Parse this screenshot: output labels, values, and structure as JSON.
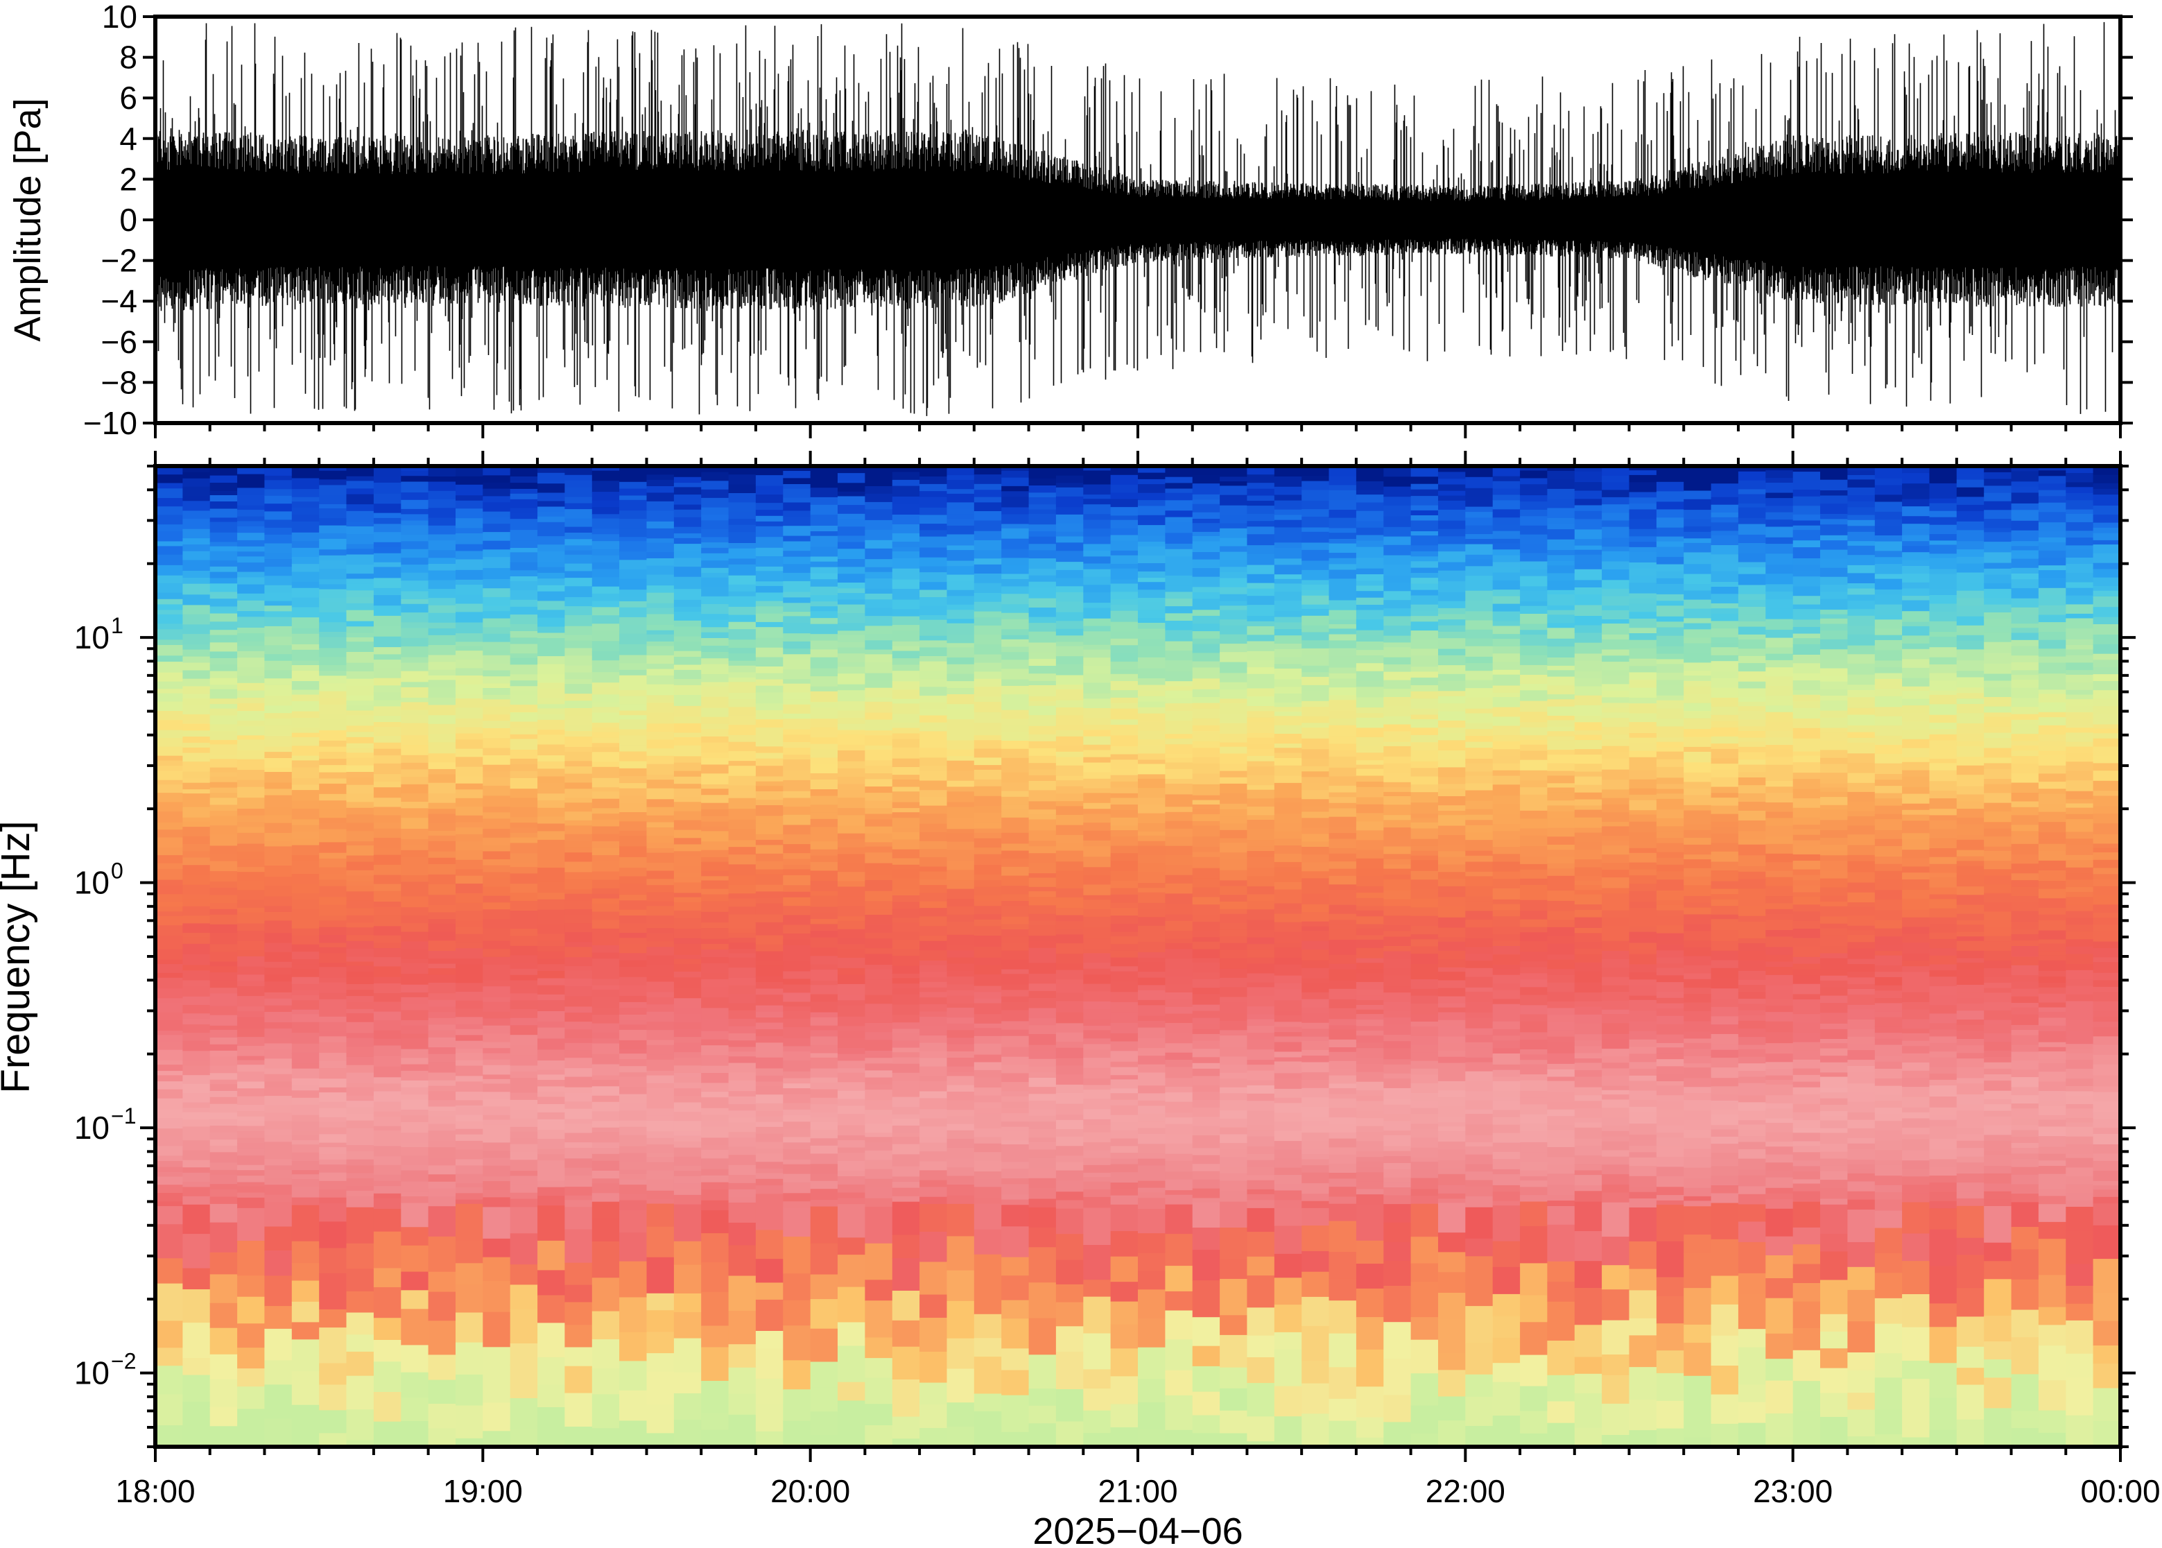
{
  "chart_data": [
    {
      "type": "line",
      "ylabel": "Amplitude [Pa]",
      "ylim": [
        -10,
        10
      ],
      "yticks": [
        "10",
        "8",
        "6",
        "4",
        "2",
        "0",
        "−2",
        "−4",
        "−6",
        "−8",
        "−10"
      ],
      "ytick_values": [
        10,
        8,
        6,
        4,
        2,
        0,
        -2,
        -4,
        -6,
        -8,
        -10
      ],
      "xlim": [
        "18:00",
        "00:00"
      ],
      "line_color": "#000000",
      "envelope": {
        "time": [
          "18:00",
          "18:30",
          "19:00",
          "19:30",
          "20:00",
          "20:30",
          "21:00",
          "21:30",
          "22:00",
          "22:30",
          "23:00",
          "23:30",
          "00:00"
        ],
        "typical_abs_amplitude": [
          3.5,
          3.2,
          3.2,
          3.4,
          3.4,
          3.4,
          1.6,
          1.4,
          1.3,
          1.5,
          3.2,
          3.3,
          3.3
        ],
        "peak_abs_amplitude": [
          9.8,
          9.8,
          9.6,
          9.6,
          9.8,
          9.6,
          7.5,
          7.2,
          7.0,
          7.3,
          9.0,
          9.5,
          9.8
        ]
      }
    },
    {
      "type": "heatmap",
      "ylabel": "Frequency [Hz]",
      "yscale": "log",
      "ylim": [
        0.005,
        50
      ],
      "yticks": [
        {
          "base": "10",
          "exp": "1",
          "value": 10
        },
        {
          "base": "10",
          "exp": "0",
          "value": 1
        },
        {
          "base": "10",
          "exp": "−1",
          "value": 0.1
        },
        {
          "base": "10",
          "exp": "−2",
          "value": 0.01
        }
      ],
      "xlabel": "2025−04−06",
      "xticks": [
        "18:00",
        "19:00",
        "20:00",
        "21:00",
        "22:00",
        "23:00",
        "00:00"
      ],
      "colormap": [
        "#f6fab4",
        "#fed97c",
        "#fba55a",
        "#f67a4e",
        "#ef5a55",
        "#f49aa0",
        "#f5b0b0",
        "#d8f096",
        "#8ee8c0",
        "#48d8e8",
        "#2aa6f0",
        "#1466e0",
        "#0a2ec0",
        "#001880"
      ],
      "frequency_profile": [
        {
          "frequency": 50,
          "color": "#001a8a"
        },
        {
          "frequency": 40,
          "color": "#0a3ccc"
        },
        {
          "frequency": 28,
          "color": "#1a70e8"
        },
        {
          "frequency": 20,
          "color": "#2aa0f0"
        },
        {
          "frequency": 14,
          "color": "#48c8e8"
        },
        {
          "frequency": 10,
          "color": "#8ee0b8"
        },
        {
          "frequency": 6,
          "color": "#dcf29a"
        },
        {
          "frequency": 3.5,
          "color": "#fde07a"
        },
        {
          "frequency": 2,
          "color": "#fba858"
        },
        {
          "frequency": 1,
          "color": "#f6784c"
        },
        {
          "frequency": 0.5,
          "color": "#ef5a55"
        },
        {
          "frequency": 0.25,
          "color": "#f0747a"
        },
        {
          "frequency": 0.12,
          "color": "#f5a8aa"
        },
        {
          "frequency": 0.06,
          "color": "#f0878c"
        },
        {
          "frequency": 0.035,
          "color": "#ef5a5a"
        },
        {
          "frequency": 0.022,
          "color": "#f88a58"
        },
        {
          "frequency": 0.015,
          "color": "#fcc46a"
        },
        {
          "frequency": 0.01,
          "color": "#f2f0a0"
        },
        {
          "frequency": 0.007,
          "color": "#d6f0a0"
        },
        {
          "frequency": 0.005,
          "color": "#c8eea0"
        }
      ]
    }
  ]
}
